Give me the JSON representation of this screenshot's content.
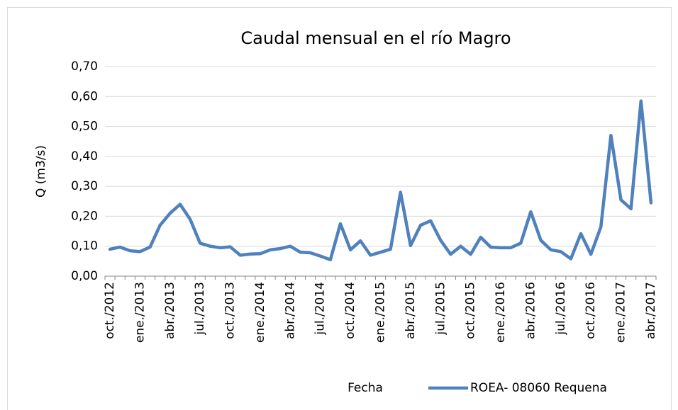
{
  "chart_data": {
    "type": "line",
    "title": "Caudal mensual en el río Magro",
    "x_label": "Fecha",
    "y_label": "Q (m3/s)",
    "categories": [
      "oct./2012",
      null,
      null,
      "ene./2013",
      null,
      null,
      "abr./2013",
      null,
      null,
      "jul./2013",
      null,
      null,
      "oct./2013",
      null,
      null,
      "ene./2014",
      null,
      null,
      "abr./2014",
      null,
      null,
      "jul./2014",
      null,
      null,
      "oct./2014",
      null,
      null,
      "ene./2015",
      null,
      null,
      "abr./2015",
      null,
      null,
      "jul./2015",
      null,
      null,
      "oct./2015",
      null,
      null,
      "ene./2016",
      null,
      null,
      "abr./2016",
      null,
      null,
      "jul./2016",
      null,
      null,
      "oct./2016",
      null,
      null,
      "ene./2017",
      null,
      null,
      "abr./2017"
    ],
    "series": [
      {
        "name": "ROEA- 08060 Requena",
        "color": "#4f81bd",
        "values": [
          0.09,
          0.097,
          0.085,
          0.082,
          0.097,
          0.17,
          0.21,
          0.24,
          0.19,
          0.11,
          0.1,
          0.095,
          0.098,
          0.07,
          0.074,
          0.075,
          0.088,
          0.092,
          0.1,
          0.08,
          0.078,
          0.067,
          0.055,
          0.175,
          0.088,
          0.118,
          0.07,
          0.08,
          0.09,
          0.28,
          0.102,
          0.17,
          0.185,
          0.12,
          0.073,
          0.1,
          0.073,
          0.13,
          0.097,
          0.095,
          0.095,
          0.11,
          0.215,
          0.12,
          0.088,
          0.082,
          0.058,
          0.142,
          0.073,
          0.165,
          0.47,
          0.255,
          0.225,
          0.585,
          0.245
        ]
      }
    ],
    "ylim": [
      0,
      0.7
    ],
    "yticks": [
      {
        "value": 0,
        "label": "0,00"
      },
      {
        "value": 0.1,
        "label": "0,10"
      },
      {
        "value": 0.2,
        "label": "0,20"
      },
      {
        "value": 0.3,
        "label": "0,30"
      },
      {
        "value": 0.4,
        "label": "0,40"
      },
      {
        "value": 0.5,
        "label": "0,50"
      },
      {
        "value": 0.6,
        "label": "0,60"
      },
      {
        "value": 0.7,
        "label": "0,70"
      }
    ],
    "grid": true,
    "legend": "bottom-right"
  }
}
